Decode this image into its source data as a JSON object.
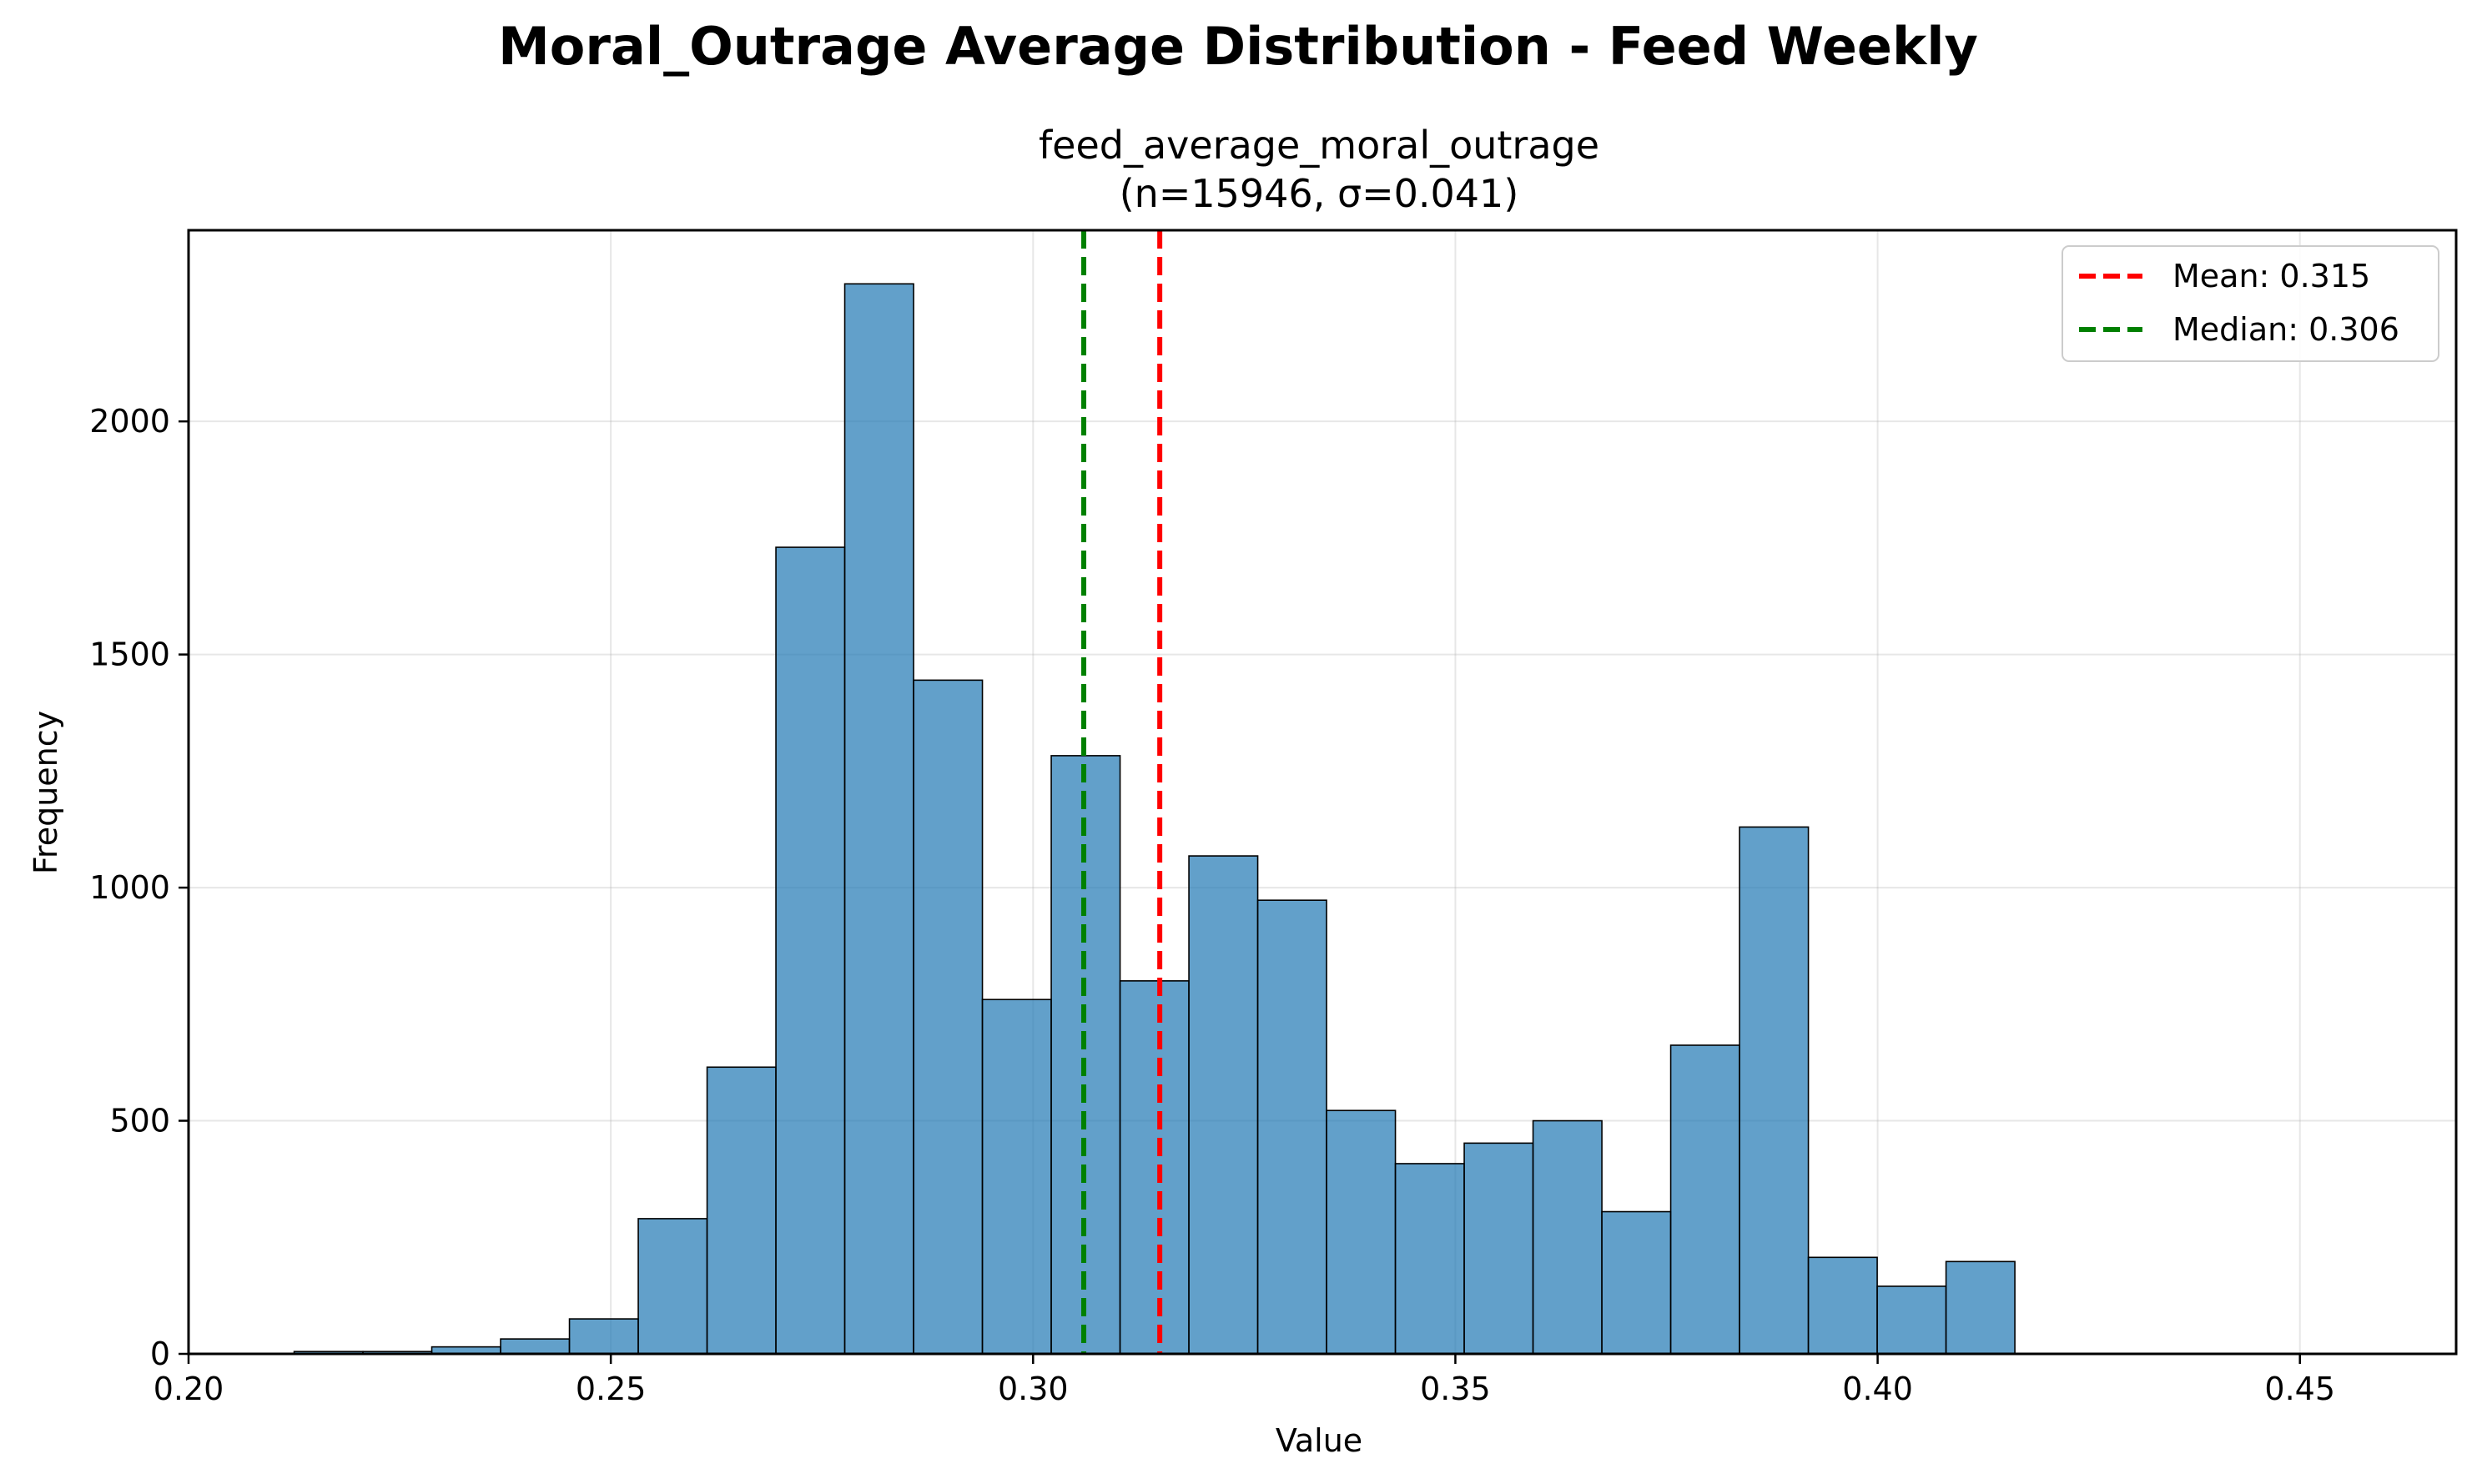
{
  "chart_data": {
    "type": "bar",
    "suptitle": "Moral_Outrage Average Distribution - Feed Weekly",
    "title_line1": "feed_average_moral_outrage",
    "title_line2": "(n=15946, σ=0.041)",
    "xlabel": "Value",
    "ylabel": "Frequency",
    "xlim": [
      0.2,
      0.4685
    ],
    "ylim": [
      0,
      2410
    ],
    "xticks": [
      0.2,
      0.25,
      0.3,
      0.35,
      0.4,
      0.45
    ],
    "xtick_labels": [
      "0.20",
      "0.25",
      "0.30",
      "0.35",
      "0.40",
      "0.45"
    ],
    "yticks": [
      0,
      500,
      1000,
      1500,
      2000
    ],
    "ytick_labels": [
      "0",
      "500",
      "1000",
      "1500",
      "2000"
    ],
    "grid": true,
    "bar_color": "#1f77b4",
    "bin_start": 0.2125,
    "bin_width": 0.00815,
    "counts": [
      5,
      5,
      15,
      32,
      75,
      290,
      615,
      1730,
      2295,
      1445,
      760,
      1283,
      800,
      1068,
      973,
      522,
      408,
      452,
      500,
      305,
      662,
      1130,
      207,
      145,
      198
    ],
    "mean": {
      "value": 0.315,
      "label": "Mean: 0.315",
      "color": "#ff0000"
    },
    "median": {
      "value": 0.306,
      "label": "Median: 0.306",
      "color": "#008000"
    },
    "legend_location": "top-right"
  }
}
